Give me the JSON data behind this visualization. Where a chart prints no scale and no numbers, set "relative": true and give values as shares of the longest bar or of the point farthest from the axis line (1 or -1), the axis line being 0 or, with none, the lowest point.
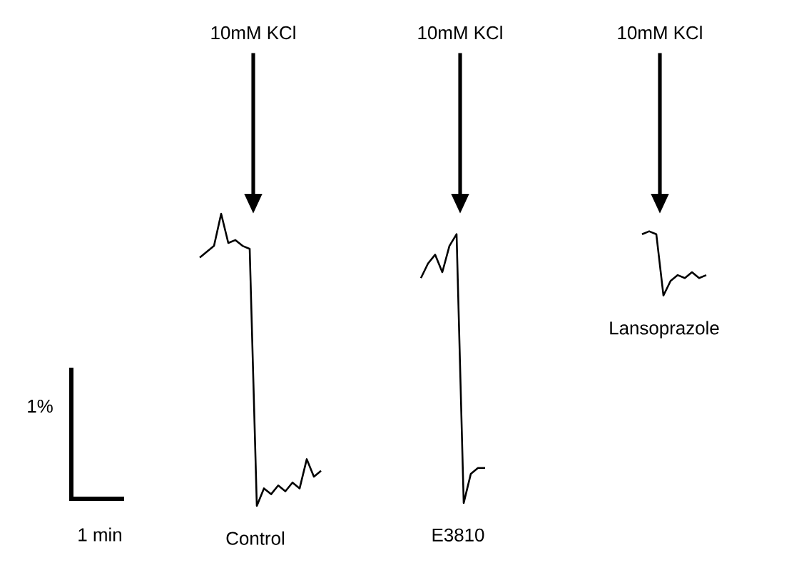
{
  "chart_data": {
    "type": "line",
    "relative": true,
    "marker": "none",
    "line_style": "solid",
    "categories": [
      null,
      null,
      null,
      null,
      null,
      null,
      null,
      null,
      null,
      null,
      null,
      null,
      null,
      null,
      null,
      null,
      null,
      null,
      null,
      null,
      null,
      null,
      null,
      null,
      null,
      null,
      null,
      null,
      null,
      null,
      null,
      null,
      null,
      null,
      null,
      null,
      null,
      null,
      null,
      null,
      null,
      null,
      null,
      null,
      null,
      null,
      null,
      null,
      null,
      null,
      null,
      null,
      null,
      null,
      null,
      null,
      null,
      null,
      null,
      null,
      null,
      null,
      null,
      null,
      null,
      null,
      null,
      null,
      null,
      null,
      null,
      null,
      null,
      null
    ],
    "series": [
      {
        "name": "Control",
        "color": "#000000",
        "values": [
          null,
          null,
          0.85,
          0.87,
          0.89,
          1.0,
          0.9,
          0.91,
          0.89,
          0.88,
          0,
          0.06,
          0.04,
          0.07,
          0.05,
          0.08,
          0.06,
          0.16,
          0.1,
          0.12,
          null,
          null,
          null,
          null,
          null,
          null,
          null,
          null,
          null,
          null,
          null,
          null,
          null,
          null,
          null,
          null,
          null,
          null,
          null,
          null,
          null,
          null,
          null,
          null,
          null,
          null,
          null,
          null,
          null,
          null,
          null,
          null,
          null,
          null,
          null,
          null,
          null,
          null,
          null,
          null,
          null,
          null,
          null,
          null,
          null,
          null,
          null,
          null,
          null,
          null,
          null,
          null,
          null,
          null
        ]
      },
      {
        "name": "E3810",
        "color": "#000000",
        "values": [
          null,
          null,
          null,
          null,
          null,
          null,
          null,
          null,
          null,
          null,
          null,
          null,
          null,
          null,
          null,
          null,
          null,
          null,
          null,
          null,
          null,
          null,
          null,
          null,
          null,
          null,
          null,
          null,
          null,
          null,
          null,
          null,
          null,
          0.78,
          0.83,
          0.86,
          0.8,
          0.89,
          0.93,
          0.01,
          0.11,
          0.13,
          0.13,
          null,
          null,
          null,
          null,
          null,
          null,
          null,
          null,
          null,
          null,
          null,
          null,
          null,
          null,
          null,
          null,
          null,
          null,
          null,
          null,
          null,
          null,
          null,
          null,
          null,
          null,
          null,
          null,
          null,
          null,
          null
        ]
      },
      {
        "name": "Lansoprazole",
        "color": "#000000",
        "values": [
          null,
          null,
          null,
          null,
          null,
          null,
          null,
          null,
          null,
          null,
          null,
          null,
          null,
          null,
          null,
          null,
          null,
          null,
          null,
          null,
          null,
          null,
          null,
          null,
          null,
          null,
          null,
          null,
          null,
          null,
          null,
          null,
          null,
          null,
          null,
          null,
          null,
          null,
          null,
          null,
          null,
          null,
          null,
          null,
          null,
          null,
          null,
          null,
          null,
          null,
          null,
          null,
          null,
          null,
          null,
          null,
          null,
          null,
          null,
          null,
          null,
          null,
          null,
          null,
          0.93,
          0.94,
          0.93,
          0.72,
          0.77,
          0.79,
          0.78,
          0.8,
          0.78,
          0.79
        ]
      }
    ],
    "annotations": [
      "10mM KCl",
      "10mM KCl",
      "10mM KCl",
      "1%",
      "1 min"
    ]
  }
}
